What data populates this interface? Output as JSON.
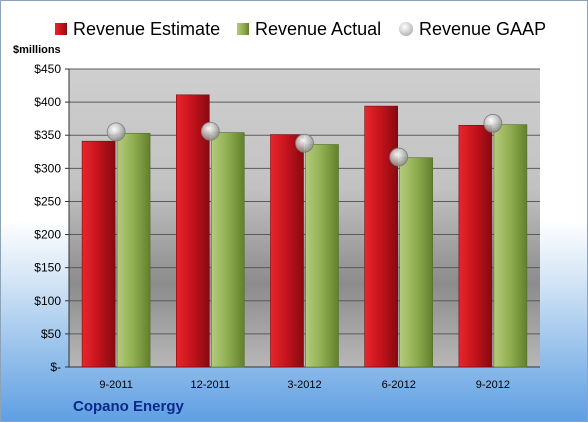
{
  "legend": {
    "estimate_label": "Revenue Estimate",
    "actual_label": "Revenue Actual",
    "gaap_label": "Revenue GAAP"
  },
  "y_unit_label": "$millions",
  "company_label": "Copano Energy",
  "colors": {
    "estimate": "#c4121c",
    "actual": "#8fae50",
    "gaap": "#b0b0b0"
  },
  "chart_data": {
    "type": "bar",
    "categories": [
      "9-2011",
      "12-2011",
      "3-2012",
      "6-2012",
      "9-2012"
    ],
    "series": [
      {
        "name": "Revenue Estimate",
        "kind": "bar",
        "values": [
          341,
          411,
          351,
          394,
          365
        ]
      },
      {
        "name": "Revenue Actual",
        "kind": "bar",
        "values": [
          353,
          354,
          336,
          316,
          366
        ]
      },
      {
        "name": "Revenue GAAP",
        "kind": "marker",
        "values": [
          355,
          356,
          338,
          317,
          368
        ]
      }
    ],
    "ylabel": "$millions",
    "ylim": [
      0,
      450
    ],
    "yticks": [
      0,
      50,
      100,
      150,
      200,
      250,
      300,
      350,
      400,
      450
    ],
    "ytick_labels": [
      "$-",
      "$50",
      "$100",
      "$150",
      "$200",
      "$250",
      "$300",
      "$350",
      "$400",
      "$450"
    ],
    "grid": true,
    "legend_position": "top"
  }
}
